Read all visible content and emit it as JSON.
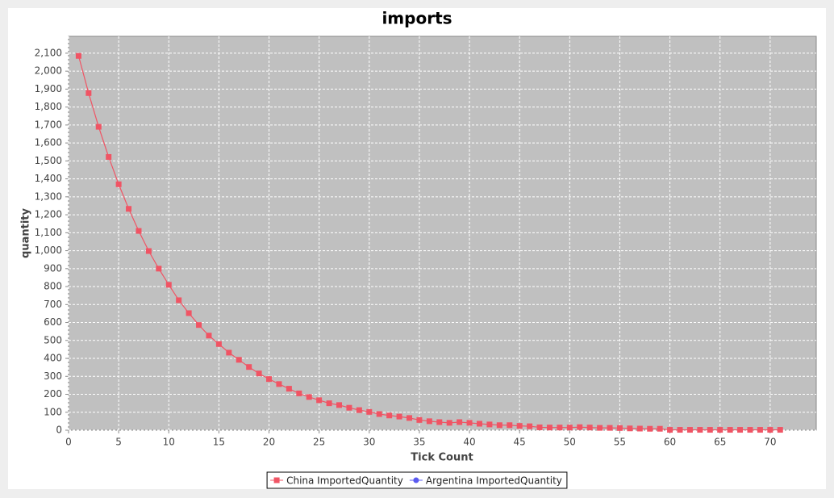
{
  "chart_data": {
    "type": "line",
    "title": "imports",
    "xlabel": "Tick Count",
    "ylabel": "quantity",
    "xlim": [
      0,
      74.6
    ],
    "ylim": [
      0,
      2194
    ],
    "xticks": [
      0,
      5,
      10,
      15,
      20,
      25,
      30,
      35,
      40,
      45,
      50,
      55,
      60,
      65,
      70
    ],
    "yticks": [
      0,
      100,
      200,
      300,
      400,
      500,
      600,
      700,
      800,
      900,
      {
        "value": 1000,
        "label": "1,000"
      },
      {
        "value": 1100,
        "label": "1,100"
      },
      {
        "value": 1200,
        "label": "1,200"
      },
      {
        "value": 1300,
        "label": "1,300"
      },
      {
        "value": 1400,
        "label": "1,400"
      },
      {
        "value": 1500,
        "label": "1,500"
      },
      {
        "value": 1600,
        "label": "1,600"
      },
      {
        "value": 1700,
        "label": "1,700"
      },
      {
        "value": 1800,
        "label": "1,800"
      },
      {
        "value": 1900,
        "label": "1,900"
      },
      {
        "value": 2000,
        "label": "2,000"
      },
      {
        "value": 2100,
        "label": "2,100"
      }
    ],
    "grid": true,
    "legend": "bottom",
    "series": [
      {
        "name": "China ImportedQuantity",
        "color": "#f05464",
        "marker": "square",
        "x": [
          1,
          2,
          3,
          4,
          5,
          6,
          7,
          8,
          9,
          10,
          11,
          12,
          13,
          14,
          15,
          16,
          17,
          18,
          19,
          20,
          21,
          22,
          23,
          24,
          25,
          26,
          27,
          28,
          29,
          30,
          31,
          32,
          33,
          34,
          35,
          36,
          37,
          38,
          39,
          40,
          41,
          42,
          43,
          44,
          45,
          46,
          47,
          48,
          49,
          50,
          51,
          52,
          53,
          54,
          55,
          56,
          57,
          58,
          59,
          60,
          61,
          62,
          63,
          64,
          65,
          66,
          67,
          68,
          69,
          70,
          71
        ],
        "values": [
          2085,
          1878,
          1690,
          1522,
          1370,
          1233,
          1110,
          998,
          900,
          810,
          724,
          652,
          586,
          527,
          480,
          432,
          392,
          352,
          316,
          285,
          257,
          231,
          205,
          185,
          167,
          150,
          140,
          125,
          112,
          102,
          90,
          82,
          76,
          68,
          57,
          50,
          45,
          41,
          45,
          41,
          36,
          32,
          28,
          28,
          24,
          22,
          16,
          15,
          15,
          15,
          17,
          15,
          13,
          13,
          12,
          10,
          9,
          8,
          8,
          2,
          2,
          2,
          2,
          2,
          2,
          2,
          2,
          2,
          2,
          2,
          2
        ]
      },
      {
        "name": "Argentina ImportedQuantity",
        "color": "#5a5af0",
        "marker": "circle",
        "x": [],
        "values": []
      }
    ]
  }
}
